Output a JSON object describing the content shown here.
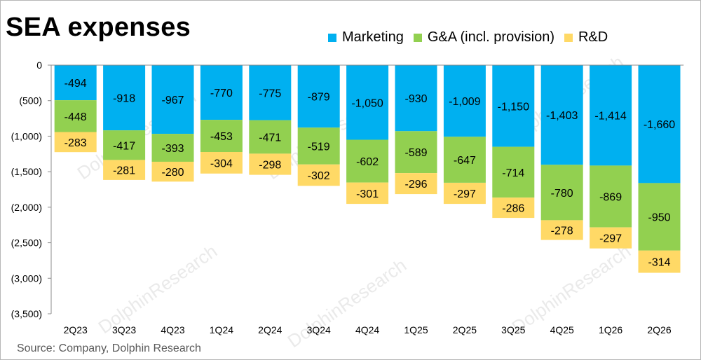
{
  "title": "SEA expenses",
  "source": "Source: Company, Dolphin Research",
  "watermark": "DolphinResearch",
  "colors": {
    "Marketing": "#00B0F0",
    "G&A": "#92D050",
    "R&D": "#FFD966"
  },
  "chart_data": {
    "type": "bar",
    "stacked": true,
    "title": "SEA expenses",
    "categories": [
      "2Q23",
      "3Q23",
      "4Q23",
      "1Q24",
      "2Q24",
      "3Q24",
      "4Q24",
      "1Q25",
      "2Q25",
      "3Q25",
      "4Q25",
      "1Q26",
      "2Q26"
    ],
    "series": [
      {
        "name": "Marketing",
        "values": [
          -494,
          -918,
          -967,
          -770,
          -775,
          -879,
          -1050,
          -930,
          -1009,
          -1150,
          -1403,
          -1414,
          -1660
        ],
        "labels": [
          "-494",
          "-918",
          "-967",
          "-770",
          "-775",
          "-879",
          "-1,050",
          "-930",
          "-1,009",
          "-1,150",
          "-1,403",
          "-1,414",
          "-1,660"
        ]
      },
      {
        "name": "G&A (incl. provision)",
        "values": [
          -448,
          -417,
          -393,
          -453,
          -471,
          -519,
          -602,
          -589,
          -647,
          -714,
          -780,
          -869,
          -950
        ],
        "labels": [
          "-448",
          "-417",
          "-393",
          "-453",
          "-471",
          "-519",
          "-602",
          "-589",
          "-647",
          "-714",
          "-780",
          "-869",
          "-950"
        ]
      },
      {
        "name": "R&D",
        "values": [
          -283,
          -281,
          -280,
          -304,
          -298,
          -302,
          -301,
          -296,
          -297,
          -286,
          -278,
          -297,
          -314
        ],
        "labels": [
          "-283",
          "-281",
          "-280",
          "-304",
          "-298",
          "-302",
          "-301",
          "-296",
          "-297",
          "-286",
          "-278",
          "-297",
          "-314"
        ]
      }
    ],
    "ylim": [
      -3500,
      0
    ],
    "yticks": [
      0,
      -500,
      -1000,
      -1500,
      -2000,
      -2500,
      -3000,
      -3500
    ],
    "ytick_labels": [
      "0",
      "(500)",
      "(1,000)",
      "(1,500)",
      "(2,000)",
      "(2,500)",
      "(3,000)",
      "(3,500)"
    ],
    "xlabel": "",
    "ylabel": "",
    "legend_position": "top-right",
    "grid": false
  }
}
